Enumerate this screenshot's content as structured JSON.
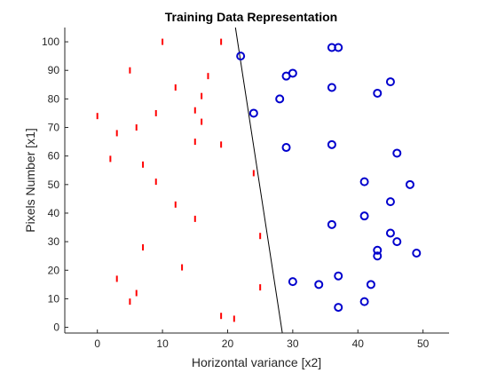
{
  "chart_data": {
    "type": "scatter",
    "title": "Training Data Representation",
    "xlabel": "Horizontal variance [x2]",
    "ylabel": "Pixels Number [x1]",
    "xlim": [
      -5,
      54
    ],
    "ylim": [
      -2,
      105
    ],
    "xticks": [
      0,
      10,
      20,
      30,
      40,
      50
    ],
    "yticks": [
      0,
      10,
      20,
      30,
      40,
      50,
      60,
      70,
      80,
      90,
      100
    ],
    "grid": false,
    "series": [
      {
        "marker": "vertical-line",
        "color": "#ff0000",
        "points": [
          [
            10,
            100
          ],
          [
            19,
            100
          ],
          [
            5,
            90
          ],
          [
            17,
            88
          ],
          [
            12,
            84
          ],
          [
            16,
            81
          ],
          [
            15,
            76
          ],
          [
            9,
            75
          ],
          [
            0,
            74
          ],
          [
            16,
            72
          ],
          [
            6,
            70
          ],
          [
            3,
            68
          ],
          [
            15,
            65
          ],
          [
            19,
            64
          ],
          [
            2,
            59
          ],
          [
            7,
            57
          ],
          [
            24,
            54
          ],
          [
            9,
            51
          ],
          [
            12,
            43
          ],
          [
            15,
            38
          ],
          [
            25,
            32
          ],
          [
            7,
            28
          ],
          [
            13,
            21
          ],
          [
            3,
            17
          ],
          [
            25,
            14
          ],
          [
            6,
            12
          ],
          [
            5,
            9
          ],
          [
            19,
            4
          ],
          [
            21,
            3
          ]
        ]
      },
      {
        "marker": "circle",
        "color": "#0000cd",
        "points": [
          [
            36,
            98
          ],
          [
            37,
            98
          ],
          [
            22,
            95
          ],
          [
            30,
            89
          ],
          [
            29,
            88
          ],
          [
            45,
            86
          ],
          [
            36,
            84
          ],
          [
            43,
            82
          ],
          [
            28,
            80
          ],
          [
            24,
            75
          ],
          [
            36,
            64
          ],
          [
            29,
            63
          ],
          [
            46,
            61
          ],
          [
            41,
            51
          ],
          [
            48,
            50
          ],
          [
            45,
            44
          ],
          [
            41,
            39
          ],
          [
            36,
            36
          ],
          [
            45,
            33
          ],
          [
            46,
            30
          ],
          [
            43,
            27
          ],
          [
            49,
            26
          ],
          [
            43,
            25
          ],
          [
            37,
            18
          ],
          [
            30,
            16
          ],
          [
            34,
            15
          ],
          [
            42,
            15
          ],
          [
            41,
            9
          ],
          [
            37,
            7
          ]
        ]
      }
    ],
    "decision_boundary": {
      "color": "#000000",
      "points": [
        [
          21.2,
          105
        ],
        [
          28.4,
          -2
        ]
      ]
    }
  }
}
